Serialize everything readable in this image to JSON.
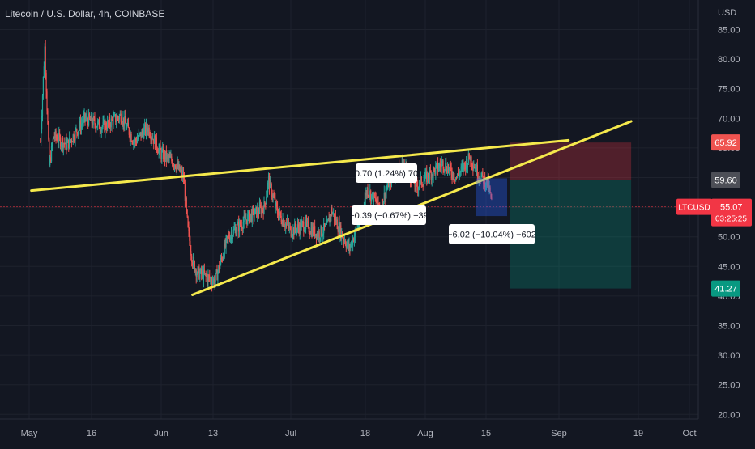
{
  "header": {
    "title": "Litecoin / U.S. Dollar, 4h, COINBASE"
  },
  "axis": {
    "currency": "USD",
    "y_ticks": [
      "85.00",
      "80.00",
      "75.00",
      "70.00",
      "65.00",
      "60.00",
      "55.00",
      "50.00",
      "45.00",
      "40.00",
      "35.00",
      "30.00",
      "25.00",
      "20.00"
    ],
    "x_ticks": [
      "May",
      "16",
      "Jun",
      "13",
      "Jul",
      "18",
      "Aug",
      "15",
      "Sep",
      "19",
      "Oct"
    ]
  },
  "price_tags": {
    "target": "65.92",
    "entry": "59.60",
    "symbol": "LTCUSD",
    "last": "55.07",
    "countdown": "03:25:25",
    "stop": "41.27"
  },
  "measurements": [
    {
      "text": "0.70 (1.24%) 70"
    },
    {
      "text": "−0.39 (−0.67%) −39"
    },
    {
      "text": "−6.02 (−10.04%) −602"
    }
  ],
  "colors": {
    "background": "#131722",
    "up": "#26a69a",
    "down": "#ef5350",
    "trendline": "#f5e94c",
    "target_zone": "rgba(242,54,69,0.28)",
    "stop_zone": "rgba(8,153,129,0.28)",
    "last_price": "#f23645",
    "entry_tag": "#4d4f57",
    "stop_tag": "#089981"
  },
  "chart_data": {
    "type": "candlestick",
    "title": "Litecoin / U.S. Dollar, 4h, COINBASE",
    "ylabel": "USD",
    "ylim": [
      19,
      88
    ],
    "x_range": [
      "2022-05-01",
      "2022-10-04"
    ],
    "close_series": [
      [
        "2022-05-10",
        66.0
      ],
      [
        "2022-05-11",
        82.0
      ],
      [
        "2022-05-12",
        62.0
      ],
      [
        "2022-05-13",
        67.0
      ],
      [
        "2022-05-16",
        65.5
      ],
      [
        "2022-05-20",
        70.0
      ],
      [
        "2022-05-24",
        68.5
      ],
      [
        "2022-05-28",
        70.5
      ],
      [
        "2022-05-31",
        66.0
      ],
      [
        "2022-06-03",
        68.5
      ],
      [
        "2022-06-06",
        64.0
      ],
      [
        "2022-06-09",
        62.5
      ],
      [
        "2022-06-11",
        60.0
      ],
      [
        "2022-06-12",
        51.0
      ],
      [
        "2022-06-13",
        46.0
      ],
      [
        "2022-06-14",
        44.0
      ],
      [
        "2022-06-18",
        42.5
      ],
      [
        "2022-06-21",
        50.0
      ],
      [
        "2022-06-25",
        53.0
      ],
      [
        "2022-06-29",
        55.0
      ],
      [
        "2022-06-30",
        59.5
      ],
      [
        "2022-07-02",
        54.0
      ],
      [
        "2022-07-05",
        51.0
      ],
      [
        "2022-07-08",
        52.0
      ],
      [
        "2022-07-11",
        50.5
      ],
      [
        "2022-07-13",
        51.5
      ],
      [
        "2022-07-14",
        54.5
      ],
      [
        "2022-07-16",
        51.0
      ],
      [
        "2022-07-18",
        48.0
      ],
      [
        "2022-07-20",
        52.0
      ],
      [
        "2022-07-22",
        58.0
      ],
      [
        "2022-07-25",
        55.0
      ],
      [
        "2022-07-27",
        59.5
      ],
      [
        "2022-07-30",
        62.5
      ],
      [
        "2022-08-02",
        58.5
      ],
      [
        "2022-08-05",
        60.5
      ],
      [
        "2022-08-08",
        62.5
      ],
      [
        "2022-08-11",
        60.0
      ],
      [
        "2022-08-14",
        63.5
      ],
      [
        "2022-08-16",
        60.5
      ],
      [
        "2022-08-18",
        59.0
      ],
      [
        "2022-08-19",
        55.07
      ]
    ],
    "trendlines": [
      {
        "from": [
          "2022-05-08",
          57.8
        ],
        "to": [
          "2022-09-05",
          66.3
        ]
      },
      {
        "from": [
          "2022-06-13",
          40.2
        ],
        "to": [
          "2022-09-19",
          69.5
        ]
      }
    ],
    "position": {
      "type": "short",
      "entry": 59.6,
      "target": 65.92,
      "stop": 41.27,
      "from": "2022-08-23",
      "to": "2022-09-19"
    },
    "last_price": 55.07
  }
}
